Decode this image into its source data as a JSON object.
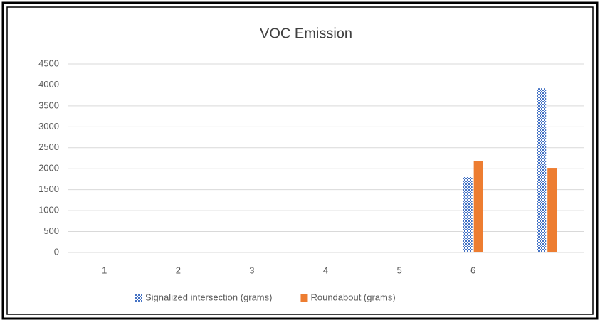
{
  "chart_data": {
    "type": "bar",
    "title": "VOC Emission",
    "categories": [
      "1",
      "2",
      "3",
      "4",
      "5",
      "6",
      null
    ],
    "series": [
      {
        "name": "Signalized intersection (grams)",
        "color": "#4472c4",
        "values": [
          null,
          null,
          null,
          null,
          null,
          1800,
          3920
        ]
      },
      {
        "name": "Roundabout (grams)",
        "color": "#ed7d31",
        "values": [
          null,
          null,
          null,
          null,
          null,
          2180,
          2020
        ]
      }
    ],
    "ylim": [
      0,
      4500
    ],
    "yticks": [
      0,
      500,
      1000,
      1500,
      2000,
      2500,
      3000,
      3500,
      4000,
      4500
    ],
    "grid": true,
    "legend": "bottom"
  }
}
